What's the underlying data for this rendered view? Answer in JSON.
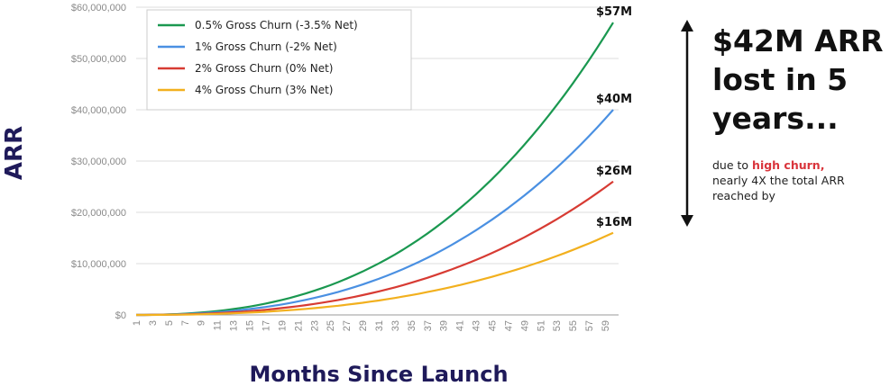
{
  "chart_data": {
    "type": "line",
    "title": "",
    "xlabel": "Months Since Launch",
    "ylabel": "ARR",
    "x": [
      1,
      2,
      3,
      4,
      5,
      6,
      7,
      8,
      9,
      10,
      11,
      12,
      13,
      14,
      15,
      16,
      17,
      18,
      19,
      20,
      21,
      22,
      23,
      24,
      25,
      26,
      27,
      28,
      29,
      30,
      31,
      32,
      33,
      34,
      35,
      36,
      37,
      38,
      39,
      40,
      41,
      42,
      43,
      44,
      45,
      46,
      47,
      48,
      49,
      50,
      51,
      52,
      53,
      54,
      55,
      56,
      57,
      58,
      59,
      60
    ],
    "x_tick_labels": [
      "1",
      "3",
      "5",
      "7",
      "9",
      "11",
      "13",
      "15",
      "17",
      "19",
      "21",
      "23",
      "25",
      "27",
      "29",
      "31",
      "33",
      "35",
      "37",
      "39",
      "41",
      "43",
      "45",
      "47",
      "49",
      "51",
      "53",
      "55",
      "57",
      "59"
    ],
    "ylim": [
      0,
      60000000
    ],
    "y_tick_labels": [
      "$0",
      "$10,000,000",
      "$20,000,000",
      "$30,000,000",
      "$40,000,000",
      "$50,000,000",
      "$60,000,000"
    ],
    "y_tick_values": [
      0,
      10000000,
      20000000,
      30000000,
      40000000,
      50000000,
      60000000
    ],
    "grid": "horizontal",
    "legend_position": "top-left",
    "series": [
      {
        "name": "0.5% Gross Churn (-3.5% Net)",
        "color": "#1a9850",
        "end_value": 57000000,
        "end_label": "$57M"
      },
      {
        "name": "1% Gross Churn (-2% Net)",
        "color": "#4a90e2",
        "end_value": 40000000,
        "end_label": "$40M"
      },
      {
        "name": "2% Gross Churn (0% Net)",
        "color": "#d73b33",
        "end_value": 26000000,
        "end_label": "$26M"
      },
      {
        "name": "4% Gross Churn (3% Net)",
        "color": "#f2b01e",
        "end_value": 16000000,
        "end_label": "$16M"
      }
    ]
  },
  "callout": {
    "headline_lines": [
      "$42M ARR",
      "lost in 5",
      "years..."
    ],
    "sub_prefix": "due to ",
    "sub_highlight": "high churn,",
    "sub_line2": "nearly 4X the total ARR",
    "sub_line3": "reached by",
    "highlight_color": "#d9343b",
    "arrow_icon": "double-headed-vertical-arrow-icon"
  }
}
